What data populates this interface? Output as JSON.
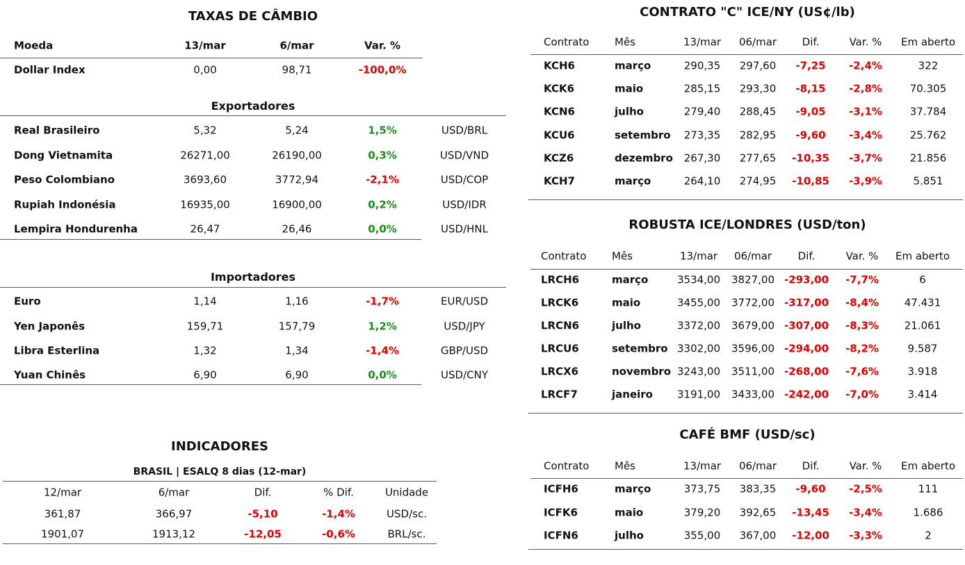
{
  "cambio": {
    "title": "TAXAS DE CÂMBIO",
    "header": [
      "Moeda",
      "13/mar",
      "6/mar",
      "Var. %"
    ],
    "rows": [
      [
        "Dollar Index",
        "0,00",
        "98,71",
        "-100,0%"
      ]
    ],
    "groups": [
      {
        "title": "Exportadores",
        "rows": [
          [
            "Real Brasileiro",
            "5,32",
            "5,24",
            "1,5%",
            "USD/BRL"
          ],
          [
            "Dong Vietnamita",
            "26271,00",
            "26190,00",
            "0,3%",
            "USD/VND"
          ],
          [
            "Peso Colombiano",
            "3693,60",
            "3772,94",
            "-2,1%",
            "USD/COP"
          ],
          [
            "Rupiah Indonésia",
            "16935,00",
            "16900,00",
            "0,2%",
            "USD/IDR"
          ],
          [
            "Lempira Hondurenha",
            "26,47",
            "26,46",
            "0,0%",
            "USD/HNL"
          ]
        ]
      },
      {
        "title": "Importadores",
        "rows": [
          [
            "Euro",
            "1,14",
            "1,16",
            "-1,7%",
            "EUR/USD"
          ],
          [
            "Yen Japonês",
            "159,71",
            "157,79",
            "1,2%",
            "USD/JPY"
          ],
          [
            "Libra Esterlina",
            "1,32",
            "1,34",
            "-1,4%",
            "GBP/USD"
          ],
          [
            "Yuan Chinês",
            "6,90",
            "6,90",
            "0,0%",
            "USD/CNY"
          ]
        ]
      }
    ]
  },
  "indicadores": {
    "title": "INDICADORES",
    "subtitle": "BRASIL | ESALQ 8 dias (12-mar)",
    "header": [
      "12/mar",
      "6/mar",
      "Dif.",
      "% Dif.",
      "Unidade"
    ],
    "rows": [
      [
        "361,87",
        "366,97",
        "-5,10",
        "-1,4%",
        "USD/sc."
      ],
      [
        "1901,07",
        "1913,12",
        "-12,05",
        "-0,6%",
        "BRL/sc."
      ]
    ]
  },
  "contratos": [
    {
      "title": "CONTRATO \"C\" ICE/NY (US¢/lb)",
      "header": [
        "Contrato",
        "Mês",
        "13/mar",
        "06/mar",
        "Dif.",
        "Var. %",
        "Em aberto"
      ],
      "rows": [
        [
          "KCH6",
          "março",
          "290,35",
          "297,60",
          "-7,25",
          "-2,4%",
          "322"
        ],
        [
          "KCK6",
          "maio",
          "285,15",
          "293,30",
          "-8,15",
          "-2,8%",
          "70.305"
        ],
        [
          "KCN6",
          "julho",
          "279,40",
          "288,45",
          "-9,05",
          "-3,1%",
          "37.784"
        ],
        [
          "KCU6",
          "setembro",
          "273,35",
          "282,95",
          "-9,60",
          "-3,4%",
          "25.762"
        ],
        [
          "KCZ6",
          "dezembro",
          "267,30",
          "277,65",
          "-10,35",
          "-3,7%",
          "21.856"
        ],
        [
          "KCH7",
          "março",
          "264,10",
          "274,95",
          "-10,85",
          "-3,9%",
          "5.851"
        ]
      ]
    },
    {
      "title": "ROBUSTA ICE/LONDRES (USD/ton)",
      "header": [
        "Contrato",
        "Mês",
        "13/mar",
        "06/mar",
        "Dif.",
        "Var. %",
        "Em aberto"
      ],
      "rows": [
        [
          "LRCH6",
          "março",
          "3534,00",
          "3827,00",
          "-293,00",
          "-7,7%",
          "6"
        ],
        [
          "LRCK6",
          "maio",
          "3455,00",
          "3772,00",
          "-317,00",
          "-8,4%",
          "47.431"
        ],
        [
          "LRCN6",
          "julho",
          "3372,00",
          "3679,00",
          "-307,00",
          "-8,3%",
          "21.061"
        ],
        [
          "LRCU6",
          "setembro",
          "3302,00",
          "3596,00",
          "-294,00",
          "-8,2%",
          "9.587"
        ],
        [
          "LRCX6",
          "novembro",
          "3243,00",
          "3511,00",
          "-268,00",
          "-7,6%",
          "3.918"
        ],
        [
          "LRCF7",
          "janeiro",
          "3191,00",
          "3433,00",
          "-242,00",
          "-7,0%",
          "3.414"
        ]
      ]
    },
    {
      "title": "CAFÉ BMF (USD/sc)",
      "header": [
        "Contrato",
        "Mês",
        "13/mar",
        "06/mar",
        "Dif.",
        "Var. %",
        "Em aberto"
      ],
      "rows": [
        [
          "ICFH6",
          "março",
          "373,75",
          "383,35",
          "-9,60",
          "-2,5%",
          "111"
        ],
        [
          "ICFK6",
          "maio",
          "379,20",
          "392,65",
          "-13,45",
          "-3,4%",
          "1.686"
        ],
        [
          "ICFN6",
          "julho",
          "355,00",
          "367,00",
          "-12,00",
          "-3,3%",
          "2"
        ]
      ]
    }
  ]
}
